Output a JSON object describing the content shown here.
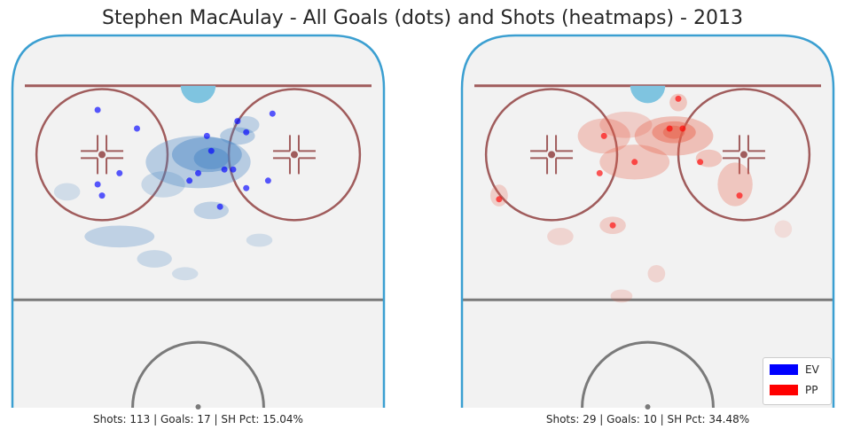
{
  "title": "Stephen MacAulay - All Goals (dots) and Shots (heatmaps) - 2013",
  "colors": {
    "ev": "#0000ff",
    "pp": "#ff0000",
    "ice": "#f2f2f2",
    "boards": "#3b9fd1",
    "redline": "#a05c5c",
    "blueline": "#7a7a7a",
    "crease": "#7fc4e0"
  },
  "chart_data": [
    {
      "type": "scatter",
      "panel": "left",
      "situation": "EV",
      "caption": "Shots: 113 | Goals: 17 | SH Pct: 15.04%",
      "shots": 113,
      "goals": 17,
      "sh_pct": 15.04,
      "goal_locations": [
        {
          "x": -23,
          "y": 80
        },
        {
          "x": -14,
          "y": 75
        },
        {
          "x": -18,
          "y": 63
        },
        {
          "x": -23,
          "y": 60
        },
        {
          "x": -22,
          "y": 57
        },
        {
          "x": 2,
          "y": 73
        },
        {
          "x": 3,
          "y": 69
        },
        {
          "x": 6,
          "y": 64
        },
        {
          "x": 8,
          "y": 64
        },
        {
          "x": 0,
          "y": 63
        },
        {
          "x": -2,
          "y": 61
        },
        {
          "x": 11,
          "y": 74
        },
        {
          "x": 9,
          "y": 77
        },
        {
          "x": 17,
          "y": 79
        },
        {
          "x": 11,
          "y": 59
        },
        {
          "x": 16,
          "y": 61
        },
        {
          "x": 5,
          "y": 54
        }
      ]
    },
    {
      "type": "scatter",
      "panel": "right",
      "situation": "PP",
      "caption": "Shots: 29 | Goals: 10 | SH Pct: 34.48%",
      "shots": 29,
      "goals": 10,
      "sh_pct": 34.48,
      "goal_locations": [
        {
          "x": 7,
          "y": 83
        },
        {
          "x": 5,
          "y": 75
        },
        {
          "x": 8,
          "y": 75
        },
        {
          "x": -10,
          "y": 73
        },
        {
          "x": -3,
          "y": 66
        },
        {
          "x": 12,
          "y": 66
        },
        {
          "x": -11,
          "y": 63
        },
        {
          "x": -34,
          "y": 56
        },
        {
          "x": 21,
          "y": 57
        },
        {
          "x": -8,
          "y": 49
        }
      ]
    }
  ],
  "legend": [
    {
      "label": "EV",
      "color": "#0000ff"
    },
    {
      "label": "PP",
      "color": "#ff0000"
    }
  ]
}
